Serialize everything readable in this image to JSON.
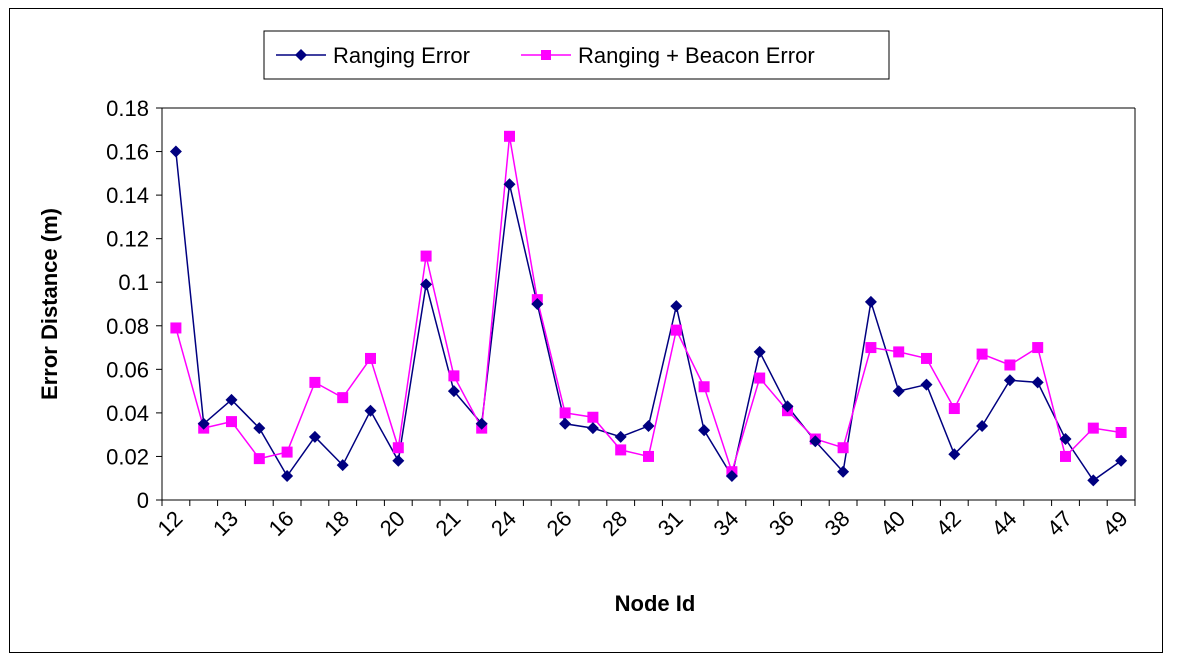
{
  "colors": {
    "series1": "#000080",
    "series2": "#ff00ff",
    "axis": "#000000"
  },
  "chart_data": {
    "type": "line",
    "title": "",
    "xlabel": "Node Id",
    "ylabel": "Error Distance (m)",
    "ylim": [
      0,
      0.18
    ],
    "ytick_step": 0.02,
    "grid": false,
    "legend_position": "top",
    "ytick_labels": [
      "0",
      "0.02",
      "0.04",
      "0.06",
      "0.08",
      "0.1",
      "0.12",
      "0.14",
      "0.16",
      "0.18"
    ],
    "xtick_labels": [
      "12",
      "13",
      "16",
      "18",
      "20",
      "21",
      "24",
      "26",
      "28",
      "31",
      "34",
      "36",
      "38",
      "40",
      "42",
      "44",
      "47",
      "49"
    ],
    "series": [
      {
        "name": "Ranging Error",
        "marker": "diamond",
        "values": [
          0.16,
          0.035,
          0.046,
          0.033,
          0.011,
          0.029,
          0.016,
          0.041,
          0.018,
          0.099,
          0.05,
          0.035,
          0.145,
          0.09,
          0.035,
          0.033,
          0.029,
          0.034,
          0.089,
          0.032,
          0.011,
          0.068,
          0.043,
          0.027,
          0.013,
          0.091,
          0.05,
          0.053,
          0.021,
          0.034,
          0.055,
          0.054,
          0.028,
          0.009,
          0.018
        ]
      },
      {
        "name": "Ranging + Beacon Error",
        "marker": "square",
        "values": [
          0.079,
          0.033,
          0.036,
          0.019,
          0.022,
          0.054,
          0.047,
          0.065,
          0.024,
          0.112,
          0.057,
          0.033,
          0.167,
          0.092,
          0.04,
          0.038,
          0.023,
          0.02,
          0.078,
          0.052,
          0.013,
          0.056,
          0.041,
          0.028,
          0.024,
          0.07,
          0.068,
          0.065,
          0.042,
          0.067,
          0.062,
          0.07,
          0.02,
          0.033,
          0.031
        ]
      }
    ]
  }
}
